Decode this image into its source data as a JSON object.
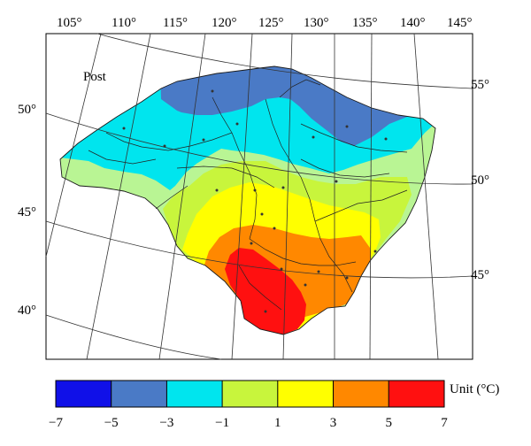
{
  "map": {
    "inset_label": "Post",
    "longitude_labels": [
      "105°",
      "110°",
      "115°",
      "120°",
      "125°",
      "130°",
      "135°",
      "140°",
      "145°"
    ],
    "latitude_labels_left": [
      "50°",
      "45°",
      "40°"
    ],
    "latitude_labels_right": [
      "55°",
      "50°",
      "45°"
    ]
  },
  "legend": {
    "unit_label": "Unit (°C)",
    "ticks": [
      "−7",
      "−5",
      "−3",
      "−1",
      "1",
      "3",
      "5",
      "7"
    ],
    "classes": [
      {
        "range": [
          -7,
          -5
        ],
        "color": "#1010e8"
      },
      {
        "range": [
          -5,
          -3
        ],
        "color": "#4a7ac6"
      },
      {
        "range": [
          -3,
          -1
        ],
        "color": "#00e5ee"
      },
      {
        "range": [
          -1,
          1
        ],
        "color": "#c8f53c"
      },
      {
        "range": [
          1,
          3
        ],
        "color": "#ffff00"
      },
      {
        "range": [
          3,
          5
        ],
        "color": "#ff8800"
      },
      {
        "range": [
          5,
          7
        ],
        "color": "#ff1010"
      }
    ]
  },
  "zone_colors": {
    "light_green": "#b9f594",
    "cyan": "#00e5ee",
    "steel_blue": "#4a7ac6",
    "yellow_green": "#c8f53c",
    "yellow": "#ffff00",
    "orange": "#ff8800",
    "red": "#ff1010"
  }
}
